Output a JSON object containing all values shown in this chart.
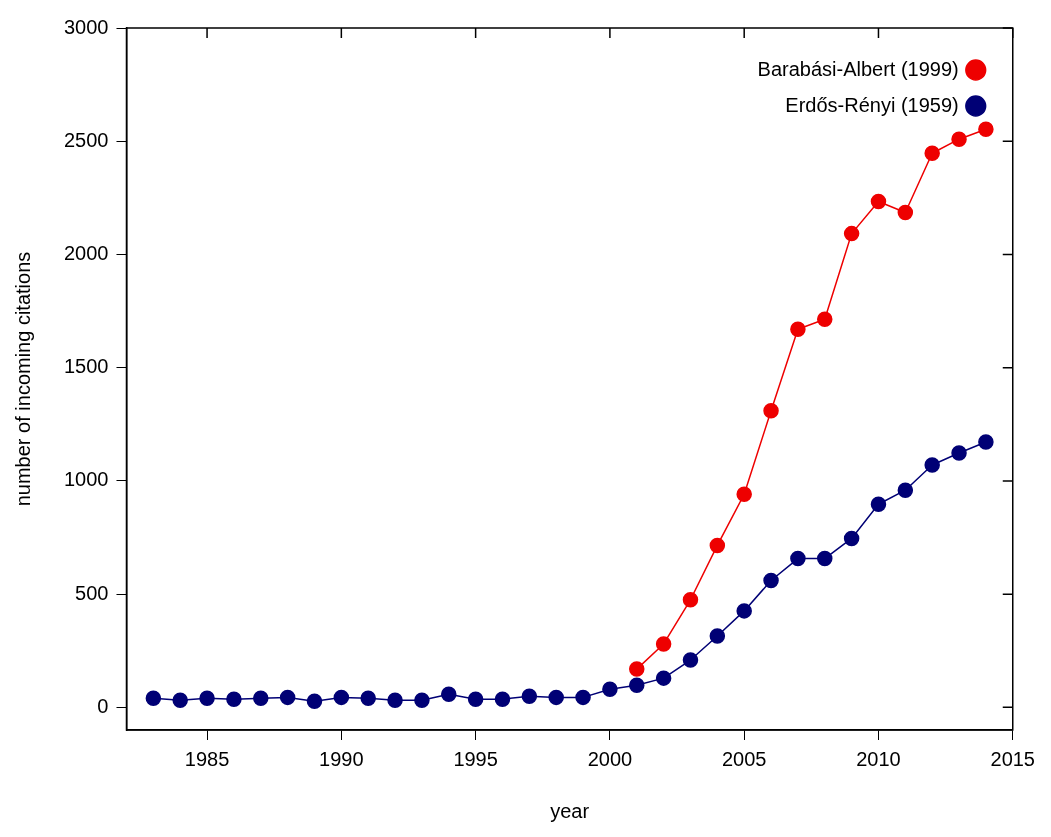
{
  "chart_data": {
    "type": "line",
    "xlabel": "year",
    "ylabel": "number of incoming citations",
    "xlim": [
      1982,
      2015
    ],
    "xticks": [
      1985,
      1990,
      1995,
      2000,
      2005,
      2010,
      2015
    ],
    "ylim": [
      -100,
      3000
    ],
    "yticks": [
      0,
      500,
      1000,
      1500,
      2000,
      2500,
      3000
    ],
    "grid": false,
    "legend": "top right",
    "marker": "circle",
    "line_style": "solid",
    "series": [
      {
        "name": "Barabási-Albert (1999)",
        "color": "#ee0000",
        "x": [
          2001,
          2002,
          2003,
          2004,
          2005,
          2006,
          2007,
          2008,
          2009,
          2010,
          2011,
          2012,
          2013,
          2014
        ],
        "values": [
          169,
          280,
          475,
          715,
          941,
          1310,
          1670,
          1714,
          2092,
          2234,
          2185,
          2447,
          2509,
          2553
        ]
      },
      {
        "name": "Erdős-Rényi (1959)",
        "color": "#000075",
        "x": [
          1983,
          1984,
          1985,
          1986,
          1987,
          1988,
          1989,
          1990,
          1991,
          1992,
          1993,
          1994,
          1995,
          1996,
          1997,
          1998,
          1999,
          2000,
          2001,
          2002,
          2003,
          2004,
          2005,
          2006,
          2007,
          2008,
          2009,
          2010,
          2011,
          2012,
          2013,
          2014
        ],
        "values": [
          40,
          31,
          40,
          36,
          40,
          44,
          27,
          44,
          40,
          31,
          31,
          58,
          36,
          36,
          49,
          44,
          44,
          80,
          98,
          129,
          209,
          315,
          426,
          560,
          657,
          657,
          746,
          897,
          959,
          1070,
          1123,
          1172
        ]
      }
    ]
  }
}
